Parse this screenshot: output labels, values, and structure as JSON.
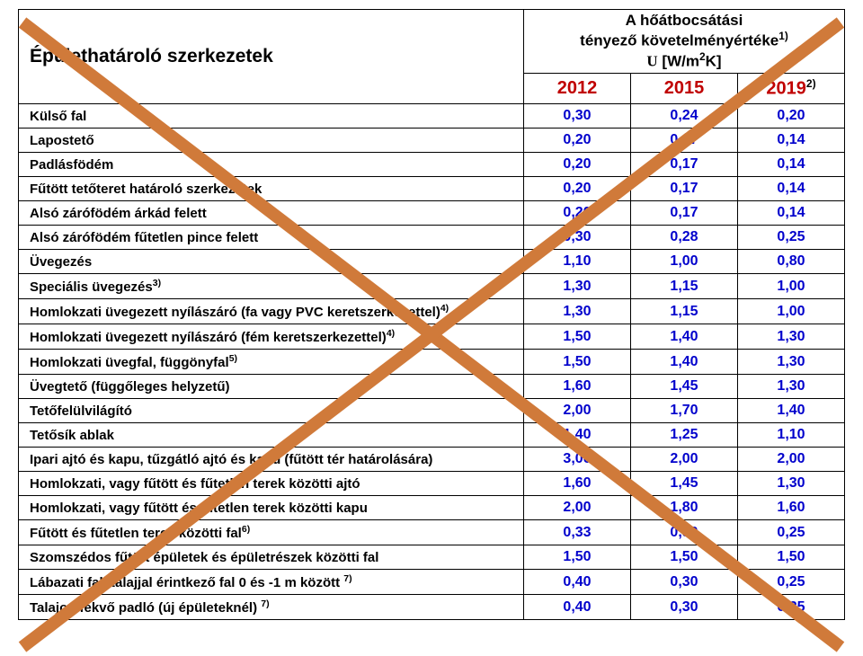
{
  "header": {
    "title": "Épülethatároló szerkezetek",
    "col_header_line1": "A hőátbocsátási",
    "col_header_line2": "tényező követelményértéke",
    "col_header_sup": "1)",
    "col_header_line3_pre": "U",
    "col_header_line3_post": " [W/m",
    "col_header_line3_sup": "2",
    "col_header_line3_end": "K]",
    "years": [
      "2012",
      "2015",
      "2019"
    ],
    "year_sup": "2)"
  },
  "rows": [
    {
      "label": "Külső fal",
      "sup": null,
      "v": [
        "0,30",
        "0,24",
        "0,20"
      ]
    },
    {
      "label": "Lapostető",
      "sup": null,
      "v": [
        "0,20",
        "0,17",
        "0,14"
      ]
    },
    {
      "label": "Padlásfödém",
      "sup": null,
      "v": [
        "0,20",
        "0,17",
        "0,14"
      ]
    },
    {
      "label": "Fűtött tetőteret határoló szerkezetek",
      "sup": null,
      "v": [
        "0,20",
        "0,17",
        "0,14"
      ]
    },
    {
      "label": "Alsó zárófödém árkád felett",
      "sup": null,
      "v": [
        "0,20",
        "0,17",
        "0,14"
      ]
    },
    {
      "label": "Alsó zárófödém fűtetlen pince felett",
      "sup": null,
      "v": [
        "0,30",
        "0,28",
        "0,25"
      ]
    },
    {
      "label": "Üvegezés",
      "sup": null,
      "v": [
        "1,10",
        "1,00",
        "0,80"
      ]
    },
    {
      "label": "Speciális üvegezés",
      "sup": "3)",
      "v": [
        "1,30",
        "1,15",
        "1,00"
      ]
    },
    {
      "label": "Homlokzati üvegezett nyílászáró (fa vagy PVC keretszerkezettel)",
      "sup": "4)",
      "v": [
        "1,30",
        "1,15",
        "1,00"
      ]
    },
    {
      "label": "Homlokzati üvegezett nyílászáró (fém keretszerkezettel)",
      "sup": "4)",
      "v": [
        "1,50",
        "1,40",
        "1,30"
      ]
    },
    {
      "label": "Homlokzati üvegfal, függönyfal",
      "sup": "5)",
      "v": [
        "1,50",
        "1,40",
        "1,30"
      ]
    },
    {
      "label": "Üvegtető (függőleges helyzetű)",
      "sup": null,
      "v": [
        "1,60",
        "1,45",
        "1,30"
      ]
    },
    {
      "label": "Tetőfelülvilágító",
      "sup": null,
      "v": [
        "2,00",
        "1,70",
        "1,40"
      ]
    },
    {
      "label": "Tetősík ablak",
      "sup": null,
      "v": [
        "1,40",
        "1,25",
        "1,10"
      ]
    },
    {
      "label": "Ipari ajtó és kapu, tűzgátló ajtó és kapu (fűtött tér határolására)",
      "sup": null,
      "v": [
        "3,00",
        "2,00",
        "2,00"
      ]
    },
    {
      "label": "Homlokzati, vagy fűtött és fűtetlen terek közötti ajtó",
      "sup": null,
      "v": [
        "1,60",
        "1,45",
        "1,30"
      ]
    },
    {
      "label": "Homlokzati, vagy fűtött és fűtetlen terek közötti kapu",
      "sup": null,
      "v": [
        "2,00",
        "1,80",
        "1,60"
      ]
    },
    {
      "label": "Fűtött és fűtetlen terek közötti fal",
      "sup": "6)",
      "v": [
        "0,33",
        "0,30",
        "0,25"
      ]
    },
    {
      "label": "Szomszédos fűtött épületek és épületrészek közötti fal",
      "sup": null,
      "v": [
        "1,50",
        "1,50",
        "1,50"
      ]
    },
    {
      "label": "Lábazati fal, talajjal érintkező fal 0 és -1 m között ",
      "sup": "7)",
      "v": [
        "0,40",
        "0,30",
        "0,25"
      ]
    },
    {
      "label": "Talajon fekvő padló (új épületeknél) ",
      "sup": "7)",
      "v": [
        "0,40",
        "0,30",
        "0,25"
      ]
    }
  ],
  "colors": {
    "year": "#c00000",
    "value": "#0000cc",
    "border": "#000000",
    "bg": "#ffffff",
    "cross": "#d07a3a",
    "cross_width": 14
  }
}
